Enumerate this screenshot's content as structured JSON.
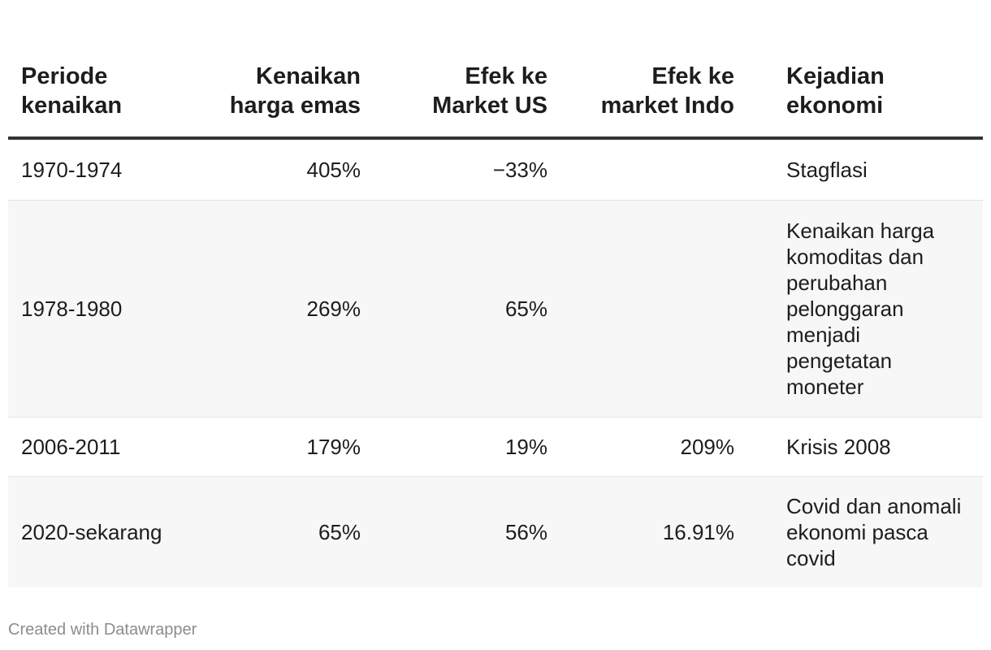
{
  "chart_data": {
    "type": "table",
    "columns": [
      "Periode kenaikan",
      "Kenaikan harga emas",
      "Efek ke Market US",
      "Efek ke market Indo",
      "Kejadian ekonomi"
    ],
    "rows": [
      [
        "1970-1974",
        "405%",
        "−33%",
        "",
        "Stagflasi"
      ],
      [
        "1978-1980",
        "269%",
        "65%",
        "",
        "Kenaikan harga komoditas dan perubahan pelonggaran menjadi pengetatan moneter"
      ],
      [
        "2006-2011",
        "179%",
        "19%",
        "209%",
        "Krisis 2008"
      ],
      [
        "2020-sekarang",
        "65%",
        "56%",
        "16.91%",
        "Covid dan anomali ekonomi pasca covid"
      ]
    ]
  },
  "footer": "Created with Datawrapper"
}
